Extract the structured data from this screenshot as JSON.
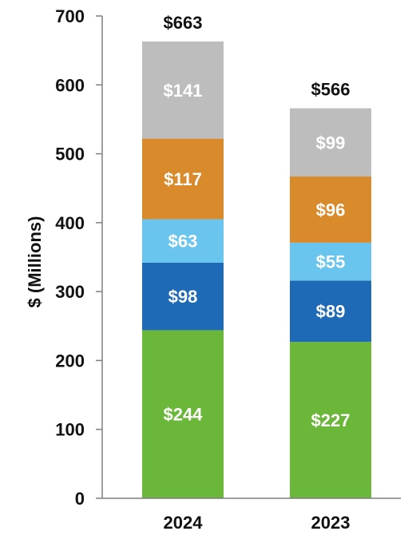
{
  "chart_data": {
    "type": "bar",
    "stacked": true,
    "categories": [
      "2024",
      "2023"
    ],
    "series": [
      {
        "values": [
          244,
          227
        ],
        "labels": [
          "$244",
          "$227"
        ],
        "color": "#6bb73a"
      },
      {
        "values": [
          98,
          89
        ],
        "labels": [
          "$98",
          "$89"
        ],
        "color": "#1f6ab7"
      },
      {
        "values": [
          63,
          55
        ],
        "labels": [
          "$63",
          "$55"
        ],
        "color": "#69c4ee"
      },
      {
        "values": [
          117,
          96
        ],
        "labels": [
          "$117",
          "$96"
        ],
        "color": "#d98a2b"
      },
      {
        "values": [
          141,
          99
        ],
        "labels": [
          "$141",
          "$99"
        ],
        "color": "#bdbdbd"
      }
    ],
    "totals": [
      663,
      566
    ],
    "total_labels": [
      "$663",
      "$566"
    ],
    "title": "",
    "xlabel": "",
    "ylabel": "$ (Millions)",
    "ylim": [
      0,
      700
    ],
    "yticks": [
      0,
      100,
      200,
      300,
      400,
      500,
      600,
      700
    ],
    "ytick_labels": [
      "0",
      "100",
      "200",
      "300",
      "400",
      "500",
      "600",
      "700"
    ],
    "grid": false,
    "legend": "none",
    "axis_color": "#7f7f7f"
  }
}
